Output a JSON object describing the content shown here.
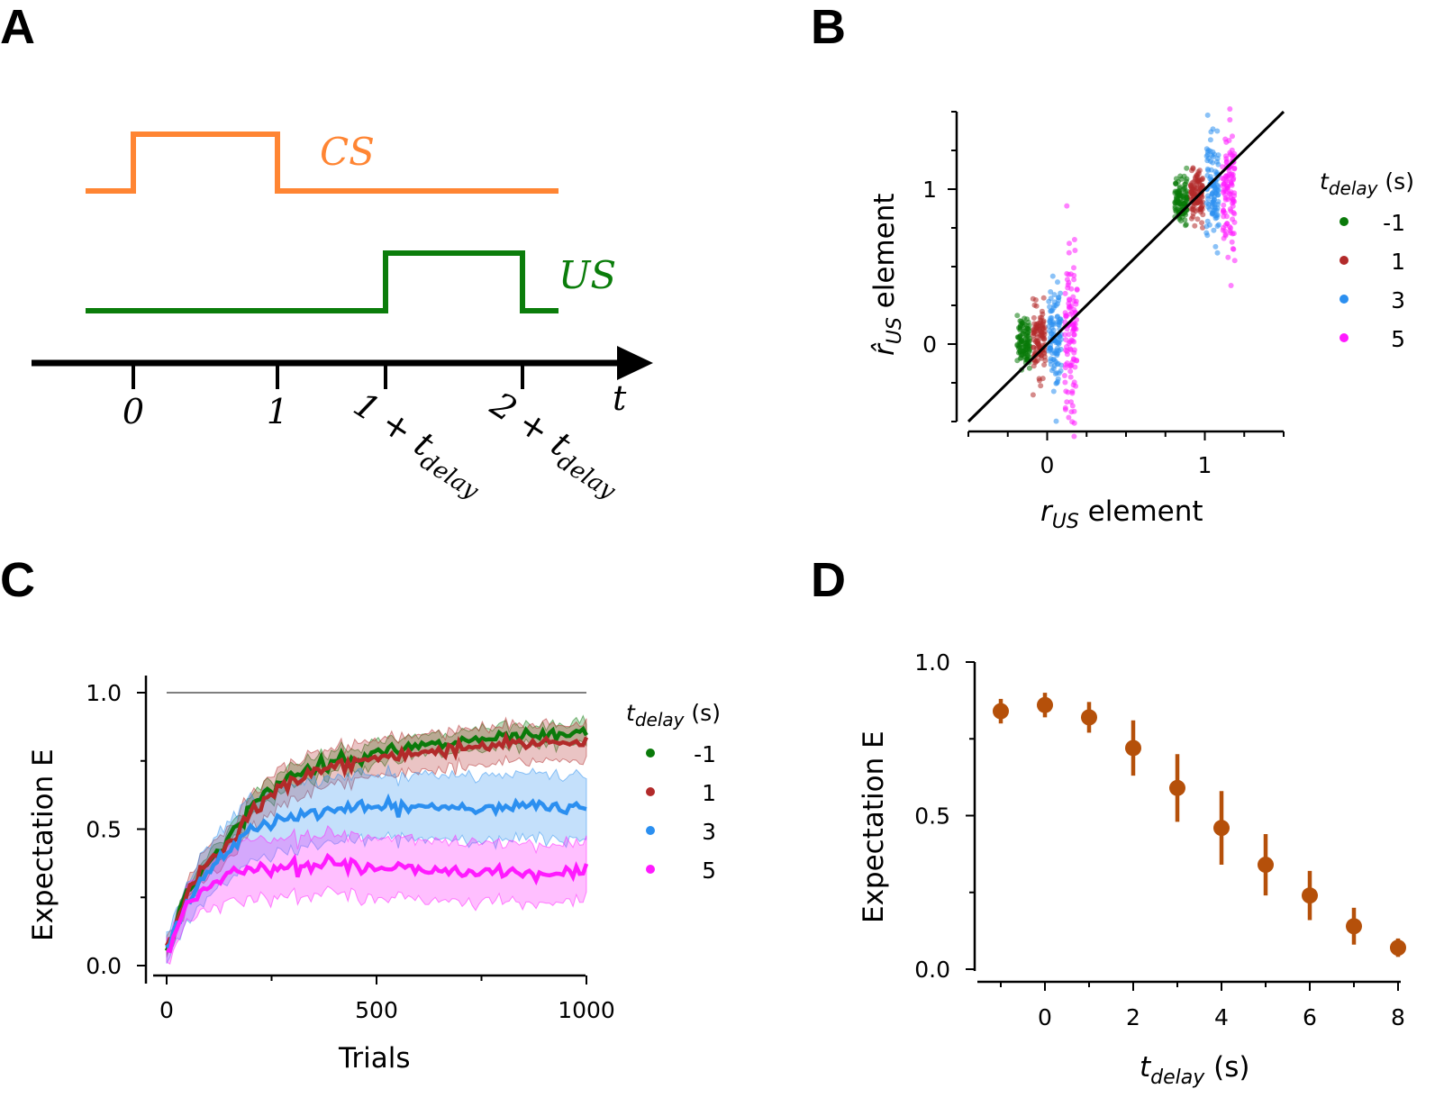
{
  "panels": {
    "A": {
      "letter": "A",
      "cs_label": "CS",
      "us_label": "US",
      "cs_color": "#ff8533",
      "us_color": "#0b7d0b",
      "time_axis_label": "t",
      "time_ticks": [
        {
          "label": "0",
          "t": 0
        },
        {
          "label": "1",
          "t": 1
        },
        {
          "label": "1 + t",
          "sub": "delay",
          "t": 1.75
        },
        {
          "label": "2 + t",
          "sub": "delay",
          "t": 2.7
        }
      ],
      "cs_pulse": {
        "on": 0,
        "off": 1
      },
      "us_pulse": {
        "on": 1.75,
        "off": 2.7
      }
    },
    "B": {
      "letter": "B",
      "xlabel": "r",
      "xlabel_sub": "US",
      "xlabel_suffix": " element",
      "ylabel": "r̂",
      "ylabel_sub": "US",
      "ylabel_suffix": " element",
      "xlim": [
        -0.5,
        1.5
      ],
      "ylim": [
        -0.5,
        1.5
      ],
      "xticks": [
        "0",
        "1"
      ],
      "yticks": [
        "0",
        "1"
      ],
      "legend_title": "t",
      "legend_title_sub": "delay",
      "legend_title_suffix": " (s)",
      "legend_placement": "right",
      "series": [
        {
          "name": "-1",
          "color": "#0a7a0a",
          "x_offset": -0.15
        },
        {
          "name": "1",
          "color": "#b22a2a",
          "x_offset": -0.05
        },
        {
          "name": "3",
          "color": "#2b8ff0",
          "x_offset": 0.05
        },
        {
          "name": "5",
          "color": "#ff1aff",
          "x_offset": 0.15
        }
      ]
    },
    "C": {
      "letter": "C",
      "xlabel": "Trials",
      "ylabel": "Expectation E",
      "xlim": [
        0,
        1000
      ],
      "ylim": [
        0,
        1.0
      ],
      "xticks": [
        "0",
        "500",
        "1000"
      ],
      "yticks": [
        "0.0",
        "0.5",
        "1.0"
      ],
      "reference_line": 1.0,
      "legend_title": "t",
      "legend_title_sub": "delay",
      "legend_title_suffix": " (s)",
      "legend_placement": "right",
      "series": [
        {
          "name": "-1",
          "color": "#0a7a0a",
          "final": 0.85,
          "band": 0.03
        },
        {
          "name": "1",
          "color": "#b22a2a",
          "final": 0.82,
          "band": 0.06
        },
        {
          "name": "3",
          "color": "#2b8ff0",
          "final": 0.58,
          "band": 0.11
        },
        {
          "name": "5",
          "color": "#ff1aff",
          "final": 0.34,
          "band": 0.1
        }
      ]
    },
    "D": {
      "letter": "D",
      "xlabel": "t",
      "xlabel_sub": "delay",
      "xlabel_suffix": " (s)",
      "ylabel": "Expectation E",
      "xlim": [
        -1,
        8
      ],
      "ylim": [
        0,
        1.0
      ],
      "xticks": [
        "0",
        "2",
        "4",
        "6",
        "8"
      ],
      "yticks": [
        "0.0",
        "0.5",
        "1.0"
      ],
      "color": "#b5500a"
    }
  },
  "chart_data": [
    {
      "type": "scatter",
      "panel": "B",
      "xlabel": "r_US element",
      "ylabel": "r̂_US element",
      "xlim": [
        -0.5,
        1.5
      ],
      "ylim": [
        -0.5,
        1.5
      ],
      "identity_line": true,
      "series": [
        {
          "name": "-1",
          "clusters": [
            {
              "x": 0,
              "y_mean": 0.02,
              "y_spread": 0.35
            },
            {
              "x": 1,
              "y_mean": 0.93,
              "y_spread": 0.32
            }
          ]
        },
        {
          "name": "1",
          "clusters": [
            {
              "x": 0,
              "y_mean": 0.02,
              "y_spread": 0.45
            },
            {
              "x": 1,
              "y_mean": 0.95,
              "y_spread": 0.35
            }
          ]
        },
        {
          "name": "3",
          "clusters": [
            {
              "x": 0,
              "y_mean": 0.04,
              "y_spread": 0.85
            },
            {
              "x": 1,
              "y_mean": 1.0,
              "y_spread": 0.7
            }
          ]
        },
        {
          "name": "5",
          "clusters": [
            {
              "x": 0,
              "y_mean": 0.05,
              "y_spread": 1.2
            },
            {
              "x": 1,
              "y_mean": 0.98,
              "y_spread": 0.95
            }
          ]
        }
      ]
    },
    {
      "type": "line",
      "panel": "C",
      "xlabel": "Trials",
      "ylabel": "Expectation E",
      "x": [
        0,
        50,
        100,
        150,
        200,
        300,
        400,
        500,
        600,
        700,
        800,
        900,
        1000
      ],
      "series": [
        {
          "name": "-1",
          "values": [
            0.05,
            0.28,
            0.38,
            0.47,
            0.58,
            0.7,
            0.75,
            0.78,
            0.8,
            0.82,
            0.83,
            0.84,
            0.85
          ]
        },
        {
          "name": "1",
          "values": [
            0.05,
            0.28,
            0.37,
            0.45,
            0.56,
            0.68,
            0.73,
            0.76,
            0.78,
            0.8,
            0.81,
            0.82,
            0.82
          ]
        },
        {
          "name": "3",
          "values": [
            0.05,
            0.25,
            0.33,
            0.43,
            0.5,
            0.55,
            0.57,
            0.58,
            0.58,
            0.58,
            0.58,
            0.58,
            0.58
          ]
        },
        {
          "name": "5",
          "values": [
            0.05,
            0.24,
            0.29,
            0.34,
            0.36,
            0.37,
            0.37,
            0.36,
            0.35,
            0.35,
            0.34,
            0.34,
            0.34
          ]
        }
      ]
    },
    {
      "type": "scatter",
      "panel": "D",
      "xlabel": "t_delay (s)",
      "ylabel": "Expectation E",
      "x": [
        -1,
        0,
        1,
        2,
        3,
        4,
        5,
        6,
        7,
        8
      ],
      "values": [
        0.84,
        0.86,
        0.82,
        0.72,
        0.59,
        0.46,
        0.34,
        0.24,
        0.14,
        0.07
      ],
      "errors": [
        0.04,
        0.04,
        0.05,
        0.09,
        0.11,
        0.12,
        0.1,
        0.08,
        0.06,
        0.03
      ]
    }
  ]
}
